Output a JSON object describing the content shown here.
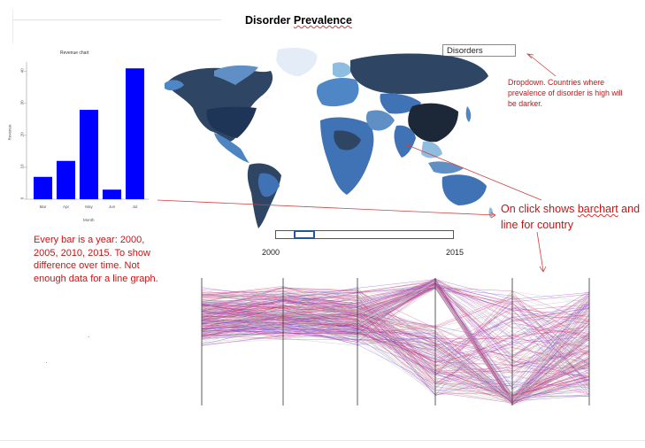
{
  "header": {
    "title_part1": "Disorder ",
    "title_part2": "Prevalence"
  },
  "dropdown": {
    "selected": "Disorders"
  },
  "annotations": {
    "dropdown_note": "Dropdown. Countries where prevalence of disorder is high will be darker.",
    "click_note_part1": "On click shows ",
    "click_note_part2": "barchart",
    "click_note_part3": " and line for country",
    "bars_note": "Every bar is a year: 2000, 2005, 2010, 2015. To show difference over time. Not enough data for a line graph."
  },
  "slider": {
    "start_label": "2000",
    "end_label": "2015",
    "position": 0.12
  },
  "chart_data": {
    "type": "bar",
    "title": "Revenue chart",
    "xlabel": "Month",
    "ylabel": "Revenue",
    "categories": [
      "Mar",
      "Apr",
      "May",
      "Jun",
      "Jul"
    ],
    "values": [
      7,
      12,
      28,
      3,
      41
    ],
    "ylim": [
      0,
      43
    ],
    "yticks": [
      0,
      10,
      20,
      30,
      40
    ],
    "color": "#0000ff"
  },
  "colors": {
    "accent_red": "#cc1111",
    "map_dark": "#2e4563",
    "map_mid": "#3f73b5",
    "map_light": "#8fbde0"
  }
}
